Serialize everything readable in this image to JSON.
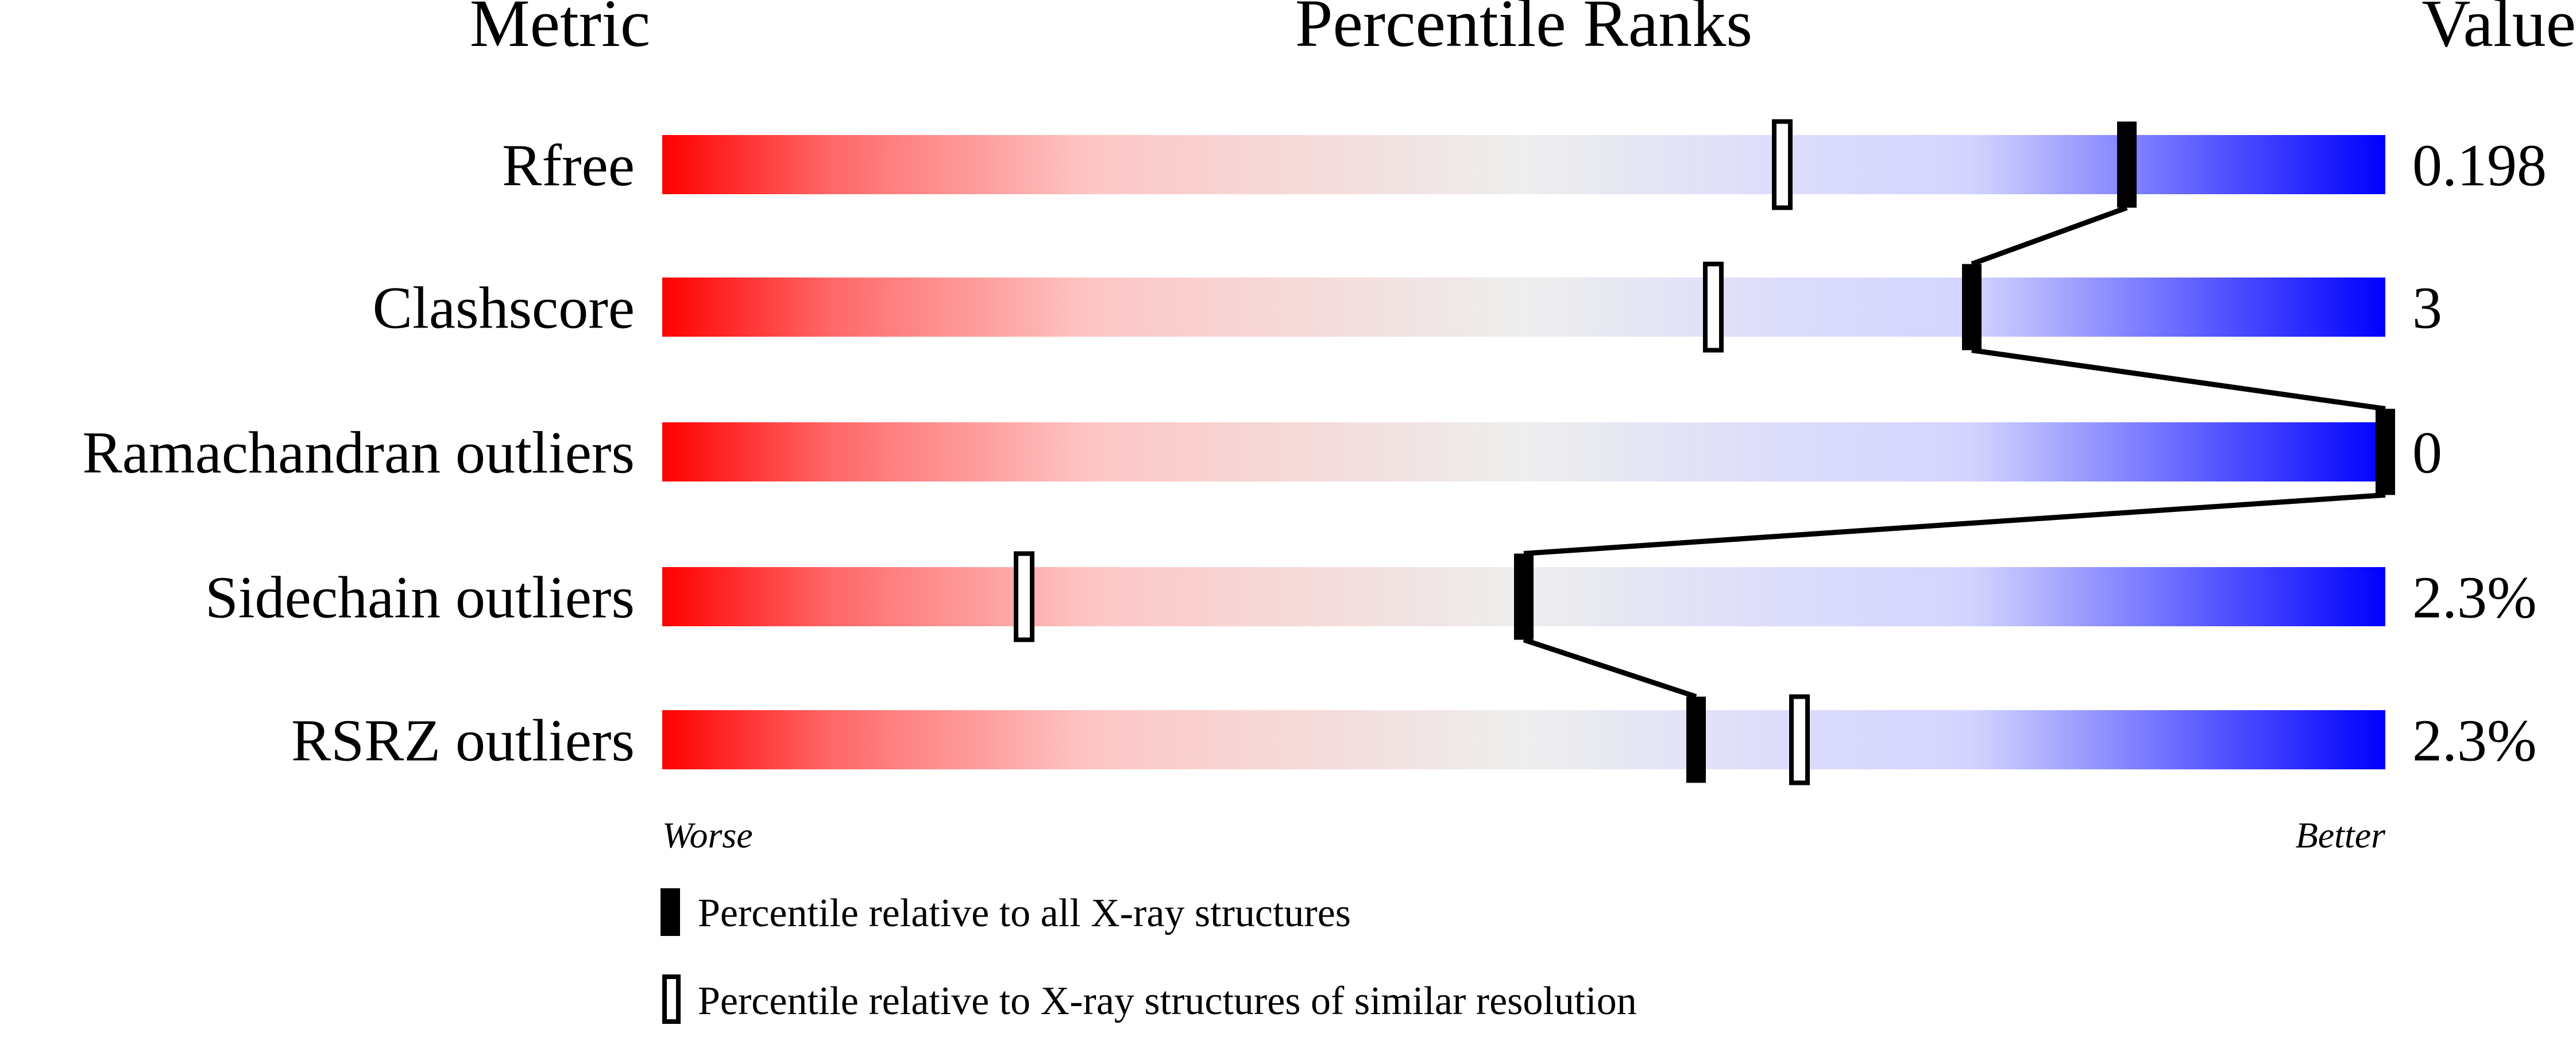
{
  "chart_data": {
    "type": "bar",
    "title": "Percentile Ranks",
    "column_headers": {
      "metric": "Metric",
      "percentile": "Percentile Ranks",
      "value": "Value"
    },
    "axis_labels": {
      "left": "Worse",
      "right": "Better"
    },
    "xlim": [
      0,
      100
    ],
    "categories": [
      "Rfree",
      "Clashscore",
      "Ramachandran outliers",
      "Sidechain outliers",
      "RSRZ outliers"
    ],
    "values_text": [
      "0.198",
      "3",
      "0",
      "2.3%",
      "2.3%"
    ],
    "series": [
      {
        "name": "Percentile relative to all X-ray structures",
        "marker": "filled",
        "values": [
          85,
          76,
          100,
          50,
          60
        ]
      },
      {
        "name": "Percentile relative to X-ray structures of similar resolution",
        "marker": "open",
        "values": [
          65,
          61,
          null,
          21,
          66
        ]
      }
    ],
    "gradient_colors": {
      "worse": "#ff0000",
      "middle": "#eeeeee",
      "better": "#0000ff"
    }
  }
}
